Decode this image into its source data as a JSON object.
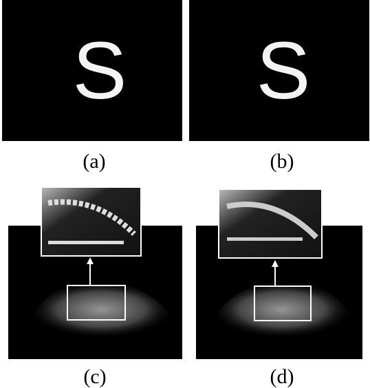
{
  "panels": [
    {
      "label": "(a)",
      "glyph": "S"
    },
    {
      "label": "(b)",
      "glyph": "S"
    },
    {
      "label": "(c)"
    },
    {
      "label": "(d)"
    }
  ]
}
